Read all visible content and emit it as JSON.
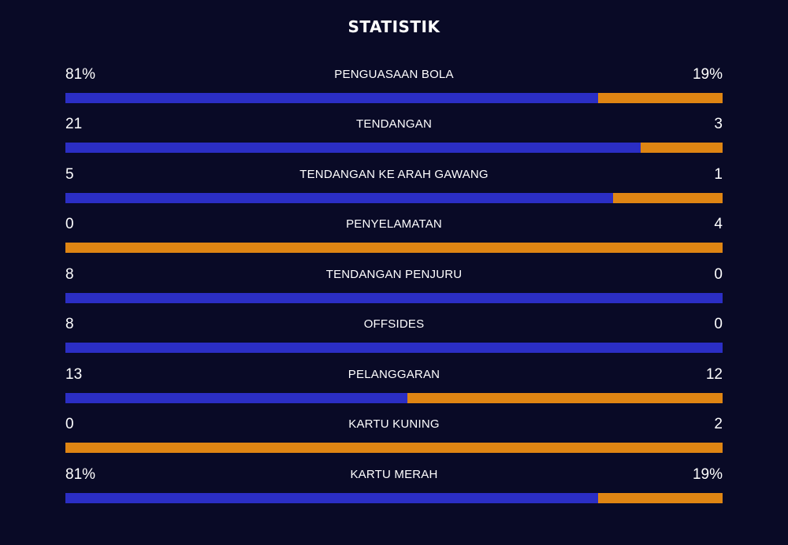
{
  "title": "STATISTIK",
  "colors": {
    "background": "#090a26",
    "home": "#2b2ec4",
    "away": "#df8513",
    "text": "#ffffff"
  },
  "stats": [
    {
      "label": "PENGUASAAN BOLA",
      "home": "81%",
      "away": "19%",
      "home_share": 0.81
    },
    {
      "label": "TENDANGAN",
      "home": "21",
      "away": "3",
      "home_share": 0.875
    },
    {
      "label": "TENDANGAN KE ARAH GAWANG",
      "home": "5",
      "away": "1",
      "home_share": 0.833
    },
    {
      "label": "PENYELAMATAN",
      "home": "0",
      "away": "4",
      "home_share": 0
    },
    {
      "label": "TENDANGAN PENJURU",
      "home": "8",
      "away": "0",
      "home_share": 1
    },
    {
      "label": "OFFSIDES",
      "home": "8",
      "away": "0",
      "home_share": 1
    },
    {
      "label": "PELANGGARAN",
      "home": "13",
      "away": "12",
      "home_share": 0.52
    },
    {
      "label": "KARTU KUNING",
      "home": "0",
      "away": "2",
      "home_share": 0
    },
    {
      "label": "KARTU MERAH",
      "home": "81%",
      "away": "19%",
      "home_share": 0.81
    }
  ]
}
